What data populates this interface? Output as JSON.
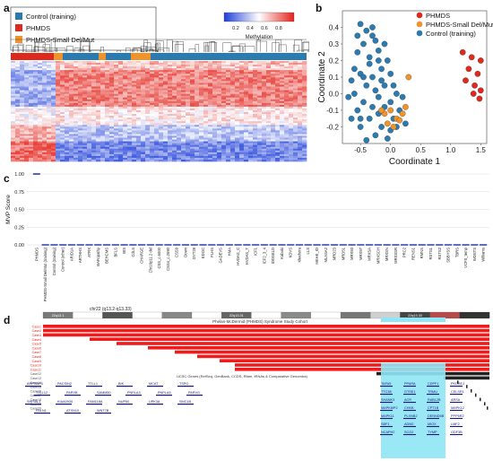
{
  "figure": {
    "panel_a_letter": "a",
    "panel_b_letter": "b",
    "panel_c_letter": "c",
    "panel_d_letter": "d"
  },
  "panel_a": {
    "legend": [
      {
        "label": "Control (training)",
        "color": "#2b7bb0"
      },
      {
        "label": "PHMDS",
        "color": "#e0291d"
      },
      {
        "label": "PHMDS-Small Del/Mut",
        "color": "#f0932b"
      }
    ],
    "colorbar_title": "Methylation",
    "colorbar_ticks": [
      "0.2",
      "0.4",
      "0.6",
      "0.8"
    ]
  },
  "chart_data": [
    {
      "type": "scatter",
      "panel": "b",
      "xlabel": "Coordinate 1",
      "ylabel": "Coordinate 2",
      "xlim": [
        -0.8,
        1.6
      ],
      "ylim": [
        -0.3,
        0.5
      ],
      "xticks": [
        "-0.5",
        "0.0",
        "0.5",
        "1.0",
        "1.5"
      ],
      "yticks": [
        "-0.2",
        "-0.1",
        "0.0",
        "0.1",
        "0.2",
        "0.3",
        "0.4"
      ],
      "legend_position": "top-right",
      "series": [
        {
          "name": "PHMDS",
          "color": "#e0291d",
          "points": [
            [
              1.2,
              0.25
            ],
            [
              1.35,
              0.22
            ],
            [
              1.5,
              0.2
            ],
            [
              1.3,
              0.15
            ],
            [
              1.45,
              0.12
            ],
            [
              1.25,
              0.08
            ],
            [
              1.4,
              0.05
            ],
            [
              1.5,
              0.02
            ],
            [
              1.48,
              -0.03
            ],
            [
              1.38,
              0.0
            ]
          ]
        },
        {
          "name": "PHMDS-Small Del/Mut",
          "color": "#f0932b",
          "points": [
            [
              -0.1,
              -0.12
            ],
            [
              0.0,
              -0.1
            ],
            [
              0.1,
              -0.15
            ],
            [
              0.2,
              -0.12
            ],
            [
              -0.05,
              -0.18
            ],
            [
              0.05,
              -0.2
            ],
            [
              0.25,
              -0.08
            ],
            [
              0.3,
              0.1
            ],
            [
              -0.15,
              -0.1
            ],
            [
              0.15,
              -0.16
            ]
          ]
        },
        {
          "name": "Control (training)",
          "color": "#2b7bb0",
          "points": [
            [
              -0.5,
              0.42
            ],
            [
              -0.4,
              0.38
            ],
            [
              -0.3,
              0.35
            ],
            [
              -0.45,
              0.3
            ],
            [
              -0.25,
              0.32
            ],
            [
              -0.55,
              0.25
            ],
            [
              -0.35,
              0.22
            ],
            [
              -0.2,
              0.26
            ],
            [
              -0.6,
              0.15
            ],
            [
              -0.5,
              0.12
            ],
            [
              -0.3,
              0.1
            ],
            [
              -0.15,
              0.15
            ],
            [
              -0.4,
              0.05
            ],
            [
              -0.25,
              0.02
            ],
            [
              -0.6,
              0.0
            ],
            [
              -0.1,
              0.05
            ],
            [
              -0.45,
              -0.05
            ],
            [
              -0.3,
              -0.08
            ],
            [
              -0.55,
              -0.1
            ],
            [
              -0.2,
              -0.12
            ],
            [
              0.0,
              -0.05
            ],
            [
              -0.35,
              -0.15
            ],
            [
              -0.5,
              -0.2
            ],
            [
              -0.15,
              -0.2
            ],
            [
              0.05,
              -0.15
            ],
            [
              -0.25,
              -0.25
            ],
            [
              0.1,
              -0.2
            ],
            [
              -0.05,
              -0.27
            ],
            [
              -0.4,
              -0.28
            ],
            [
              0.15,
              -0.1
            ],
            [
              -0.65,
              0.08
            ],
            [
              -0.7,
              -0.02
            ],
            [
              -0.55,
              0.35
            ],
            [
              -0.1,
              0.3
            ],
            [
              -0.05,
              0.2
            ],
            [
              0.0,
              0.12
            ],
            [
              0.1,
              0.0
            ],
            [
              0.2,
              -0.02
            ],
            [
              -0.2,
              -0.02
            ],
            [
              -0.35,
              0.18
            ],
            [
              -0.65,
              -0.15
            ],
            [
              0.0,
              -0.22
            ],
            [
              -0.45,
              0.1
            ],
            [
              -0.1,
              -0.08
            ],
            [
              0.25,
              -0.18
            ],
            [
              -0.3,
              0.4
            ],
            [
              -0.15,
              0.08
            ],
            [
              0.05,
              0.05
            ],
            [
              -0.2,
              0.2
            ],
            [
              -0.5,
              -0.15
            ]
          ]
        }
      ]
    },
    {
      "type": "scatter",
      "panel": "c",
      "ylabel": "MVP Score",
      "ylim": [
        0,
        1.0
      ],
      "yticks": [
        "0.00",
        "0.25",
        "0.50",
        "0.75",
        "1.00"
      ],
      "categories": [
        "PHMDS",
        "PHMDS-Small Del/Mut (training)",
        "Control (training)",
        "Control (other)",
        "ARID1A",
        "ARTHHS",
        "ATRX",
        "BAFopathy",
        "BEHCMS",
        "BFLS",
        "BIS",
        "CdLS",
        "CHARGE",
        "Chr16p11.2 del",
        "CSS_c.6000",
        "CSS4_c.2690",
        "CSS9",
        "Down",
        "DYT28",
        "EDOC",
        "FLHS",
        "GADEVS",
        "HMA",
        "HVDAS_C",
        "HVDAS_T",
        "ICF1",
        "ICF2_3_4",
        "IDDSELD",
        "Kabuki",
        "KDVS",
        "Kleefstra",
        "LLS",
        "MKHK_ID",
        "MLASA2",
        "MRD23",
        "MRD51",
        "MRX93",
        "MRX97",
        "MRXSA",
        "MRXSCH",
        "MRXSN",
        "MRXSSR",
        "PRC2",
        "RENS1",
        "RMNS",
        "RSTS1",
        "RSTS2",
        "SBBYSS",
        "TBRS",
        "VCFS_temp",
        "WDSTS",
        "Williams"
      ],
      "values": [
        1.0,
        0.0,
        0.0,
        0.0,
        0.0,
        0.0,
        0.0,
        0.0,
        0.0,
        0.0,
        0.0,
        0.0,
        0.0,
        0.0,
        0.0,
        0.0,
        0.0,
        0.0,
        0.0,
        0.0,
        0.0,
        0.0,
        0.0,
        0.0,
        0.0,
        0.0,
        0.0,
        0.0,
        0.0,
        0.0,
        0.0,
        0.0,
        0.0,
        0.0,
        0.0,
        0.0,
        0.0,
        0.0,
        0.0,
        0.0,
        0.0,
        0.0,
        0.0,
        0.0,
        0.0,
        0.0,
        0.0,
        0.0,
        0.0,
        0.0,
        0.0,
        0.0
      ]
    }
  ],
  "panel_d": {
    "chrom_label": "chr22 (q13.2-q13.33)",
    "bands": [
      "22q13.1",
      "22q13.2",
      "22q13.31",
      "22q13.32",
      "22q13.33"
    ],
    "track_title": "Phelan-McDermid (PHMDS) Syndrome Study Cohort",
    "case_labels": [
      "Case1",
      "Case2",
      "Case3",
      "Case4",
      "Case5",
      "Case6",
      "Case7",
      "Case8",
      "Case9",
      "Case10",
      "Case11",
      "Case12",
      "Case13",
      "Case14",
      "Case15",
      "Case16",
      "Case17",
      "Case18",
      "Case19",
      "Case20"
    ],
    "genes_track_title": "UCSC Genes (RefSeq, GenBank, CCDS, Rfam, tRNAs & Comparative Genomics)",
    "genes_left": [
      "ARFGAP3",
      "PACSIN2",
      "TTLL1",
      "BIK",
      "MCAT",
      "TSPO",
      "TTLL12",
      "PARVB",
      "SAMM50",
      "PNPLA3",
      "PNPLA5",
      "PARVG",
      "SHISAL1",
      "KIAA0930",
      "FAM118A",
      "NUP50",
      "UPK3A",
      "SMC1B",
      "FBLN1",
      "ATXN10",
      "WNT7B"
    ],
    "genes_right": [
      "TAFA5",
      "PPARA",
      "CDPF1",
      "PKDREJ",
      "TTC38",
      "GTSE1",
      "TRMU",
      "CELSR1",
      "SHANK3",
      "ACR",
      "RABL2B",
      "ARSA",
      "MAPK8IP2",
      "CHKB",
      "CPT1B",
      "MAPK12",
      "MAPK11",
      "PLXNB2",
      "DENND6B",
      "PPP6R2",
      "SBF1",
      "ADM2",
      "MIOX",
      "LMF2",
      "NCAPH2",
      "SCO2",
      "TYMP",
      "ODF3B"
    ]
  }
}
